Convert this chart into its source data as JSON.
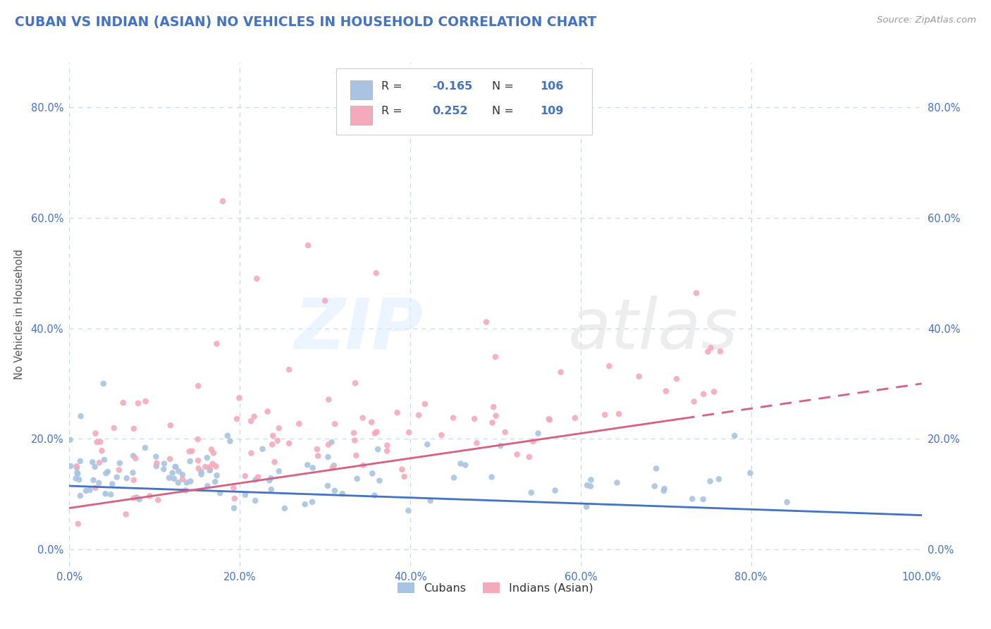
{
  "title": "CUBAN VS INDIAN (ASIAN) NO VEHICLES IN HOUSEHOLD CORRELATION CHART",
  "source": "Source: ZipAtlas.com",
  "ylabel": "No Vehicles in Household",
  "xlim": [
    0.0,
    1.0
  ],
  "ylim": [
    -0.03,
    0.88
  ],
  "xticks": [
    0.0,
    0.2,
    0.4,
    0.6,
    0.8,
    1.0
  ],
  "xtick_labels": [
    "0.0%",
    "20.0%",
    "40.0%",
    "60.0%",
    "80.0%",
    "100.0%"
  ],
  "yticks": [
    0.0,
    0.2,
    0.4,
    0.6,
    0.8
  ],
  "ytick_labels": [
    "0.0%",
    "20.0%",
    "40.0%",
    "60.0%",
    "80.0%"
  ],
  "cuban_scatter_color": "#a8c4e2",
  "indian_scatter_color": "#f5aabb",
  "cuban_line_color": "#4472c4",
  "indian_line_color": "#d95f7f",
  "legend_cuban_fill": "#a8c4e2",
  "legend_indian_fill": "#f5aabb",
  "R_cuban": -0.165,
  "N_cuban": 106,
  "R_indian": 0.252,
  "N_indian": 109,
  "legend_labels": [
    "Cubans",
    "Indians (Asian)"
  ],
  "title_color": "#4472c4",
  "tick_color": "#4472c4",
  "grid_color": "#c8d8ea",
  "axis_label_color": "#555555",
  "legend_value_color": "#4472c4",
  "background_color": "#ffffff"
}
